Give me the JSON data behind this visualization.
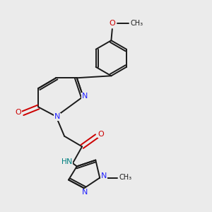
{
  "background_color": "#ebebeb",
  "bond_color": "#1a1a1a",
  "nitrogen_color": "#2020ff",
  "oxygen_color": "#cc0000",
  "nh_color": "#008080",
  "figsize": [
    3.0,
    3.0
  ],
  "dpi": 100,
  "xlim": [
    0,
    10
  ],
  "ylim": [
    0,
    10
  ]
}
